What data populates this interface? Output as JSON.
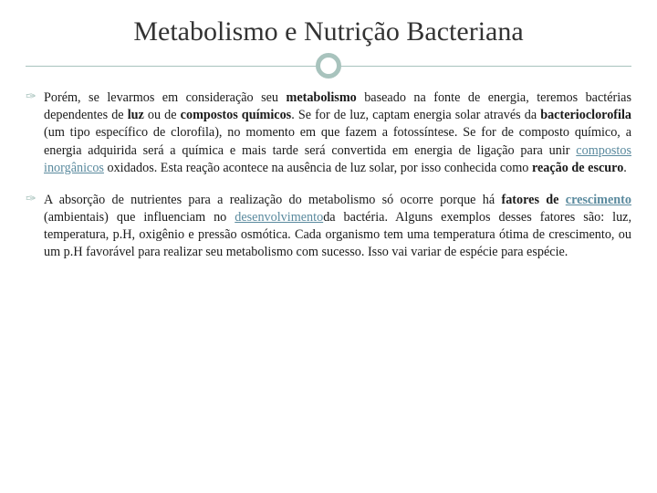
{
  "title": "Metabolismo e Nutrição Bacteriana",
  "colors": {
    "accent": "#a8c3bd",
    "link": "#5a8a9e",
    "text": "#1a1a1a",
    "bg": "#ffffff"
  },
  "typography": {
    "title_fontsize": 30,
    "body_fontsize": 14.2,
    "font_family": "Georgia, Times New Roman, serif"
  },
  "p1": {
    "t1": "Porém, se levarmos em consideração seu ",
    "b1": "metabolismo",
    "t2": " baseado na fonte de energia, teremos bactérias dependentes de ",
    "b2": "luz",
    "t3": " ou de ",
    "b3": "compostos químicos",
    "t4": ". Se for de luz, captam energia solar através da ",
    "b4": "bacterioclorofila",
    "t5": " (um tipo específico de clorofila), no momento em que fazem a fotossíntese. Se for de composto químico, a energia adquirida será a química e mais tarde será convertida em energia de ligação para unir ",
    "l1": "compostos inorgânicos",
    "t6": " oxidados. Esta reação acontece na ausência de luz solar, por isso conhecida como ",
    "b5": "reação de escuro",
    "t7": "."
  },
  "p2": {
    "t1": "A absorção de nutrientes para a realização do metabolismo só ocorre porque há ",
    "b1": "fatores de ",
    "l1": "crescimento",
    "t2": " (ambientais) que influenciam no ",
    "l2": "desenvolvimento",
    "t3": "da bactéria. Alguns exemplos desses fatores são: luz, temperatura, p.H, oxigênio e pressão osmótica. Cada organismo tem uma temperatura ótima de crescimento, ou um p.H favorável para realizar seu metabolismo com sucesso. Isso vai variar de espécie para espécie."
  },
  "bullet_glyph": "✑"
}
